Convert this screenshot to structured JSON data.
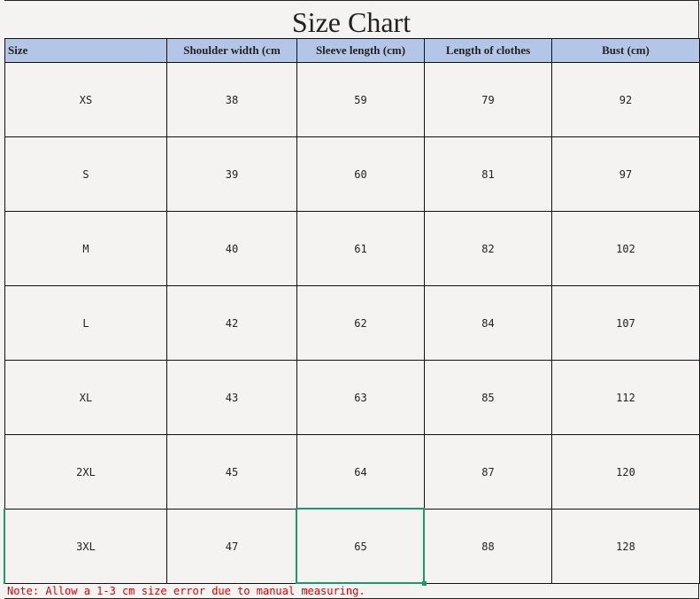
{
  "title": "Size Chart",
  "columns": [
    "Size",
    "Shoulder width (cm",
    "Sleeve length (cm)",
    "Length of clothes",
    "Bust (cm)"
  ],
  "rows": [
    [
      "XS",
      "38",
      "59",
      "79",
      "92"
    ],
    [
      "S",
      "39",
      "60",
      "81",
      "97"
    ],
    [
      "M",
      "40",
      "61",
      "82",
      "102"
    ],
    [
      "L",
      "42",
      "62",
      "84",
      "107"
    ],
    [
      "XL",
      "43",
      "63",
      "85",
      "112"
    ],
    [
      "2XL",
      "45",
      "64",
      "87",
      "120"
    ],
    [
      "3XL",
      "47",
      "65",
      "88",
      "128"
    ]
  ],
  "note": "Note: Allow a 1-3 cm size error due to manual measuring.",
  "colors": {
    "header_bg": "#b4c6e7",
    "selection": "#1a9a6a",
    "note": "#e00000",
    "cell_bg": "#f4f3f1"
  }
}
